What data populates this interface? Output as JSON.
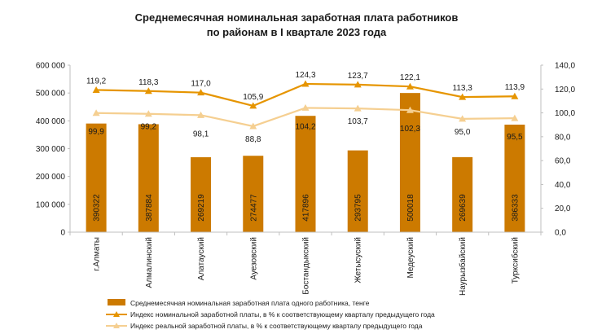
{
  "chart_data": {
    "type": "bar",
    "title_line1": "Среднемесячная номинальная заработная плата работников",
    "title_line2": "по районам в I квартале 2023 года",
    "categories": [
      "г.Алматы",
      "Алмалинский",
      "Алатауский",
      "Ауезовский",
      "Бостандыкский",
      "Жетысуский",
      "Медеуский",
      "Наурызбайский",
      "Турксибский"
    ],
    "y_left": {
      "min": 0,
      "max": 600000,
      "ticks": [
        "0",
        "100 000",
        "200 000",
        "300 000",
        "400 000",
        "500 000",
        "600 000"
      ]
    },
    "y_right": {
      "min": 0,
      "max": 140,
      "ticks": [
        "0,0",
        "20,0",
        "40,0",
        "60,0",
        "80,0",
        "100,0",
        "120,0",
        "140,0"
      ]
    },
    "bars": {
      "name": "Среднемесячная номинальная заработная плата одного работника, тенге",
      "color": "#cc7a00",
      "values": [
        390322,
        387884,
        269219,
        274477,
        417896,
        293795,
        500018,
        269639,
        386333
      ],
      "labels": [
        "390322",
        "387884",
        "269219",
        "274477",
        "417896",
        "293795",
        "500018",
        "269639",
        "386333"
      ]
    },
    "series": [
      {
        "name": "Индекс номинальной заработной платы, в % к соответствующему кварталу предыдущего года",
        "color": "#e69500",
        "values": [
          119.2,
          118.3,
          117.0,
          105.9,
          124.3,
          123.7,
          122.1,
          113.3,
          113.9
        ],
        "labels": [
          "119,2",
          "118,3",
          "117,0",
          "105,9",
          "124,3",
          "123,7",
          "122,1",
          "113,3",
          "113,9"
        ]
      },
      {
        "name": "Индекс реальной заработной платы, в % к соответствующему кварталу предыдущего года",
        "color": "#f5cf91",
        "values": [
          99.9,
          99.2,
          98.1,
          88.8,
          104.2,
          103.7,
          102.3,
          95.0,
          95.5
        ],
        "labels": [
          "99,9",
          "99,2",
          "98,1",
          "88,8",
          "104,2",
          "103,7",
          "102,3",
          "95,0",
          "95,5"
        ]
      }
    ]
  }
}
